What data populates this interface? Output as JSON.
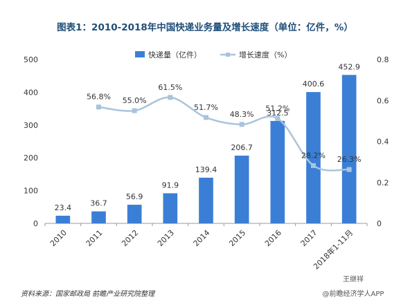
{
  "chart_data": {
    "type": "bar",
    "title": "图表1：2010-2018年中国快递业务量及增长速度（单位：亿件，%）",
    "categories": [
      "2010",
      "2011",
      "2012",
      "2013",
      "2014",
      "2015",
      "2016",
      "2017",
      "2018年1-11月"
    ],
    "series": [
      {
        "name": "快递量（亿件）",
        "type": "bar",
        "axis": "left",
        "color": "#3a7fd5",
        "values": [
          23.4,
          36.7,
          56.9,
          91.9,
          139.4,
          206.7,
          312.5,
          400.6,
          452.9
        ],
        "labels": [
          "23.4",
          "36.7",
          "56.9",
          "91.9",
          "139.4",
          "206.7",
          "312.5",
          "400.6",
          "452.9"
        ]
      },
      {
        "name": "增长速度（%）",
        "type": "line",
        "axis": "right",
        "color": "#a9c4dc",
        "values": [
          null,
          0.568,
          0.55,
          0.615,
          0.517,
          0.483,
          0.512,
          0.282,
          0.263
        ],
        "labels": [
          "",
          "56.8%",
          "55.0%",
          "61.5%",
          "51.7%",
          "48.3%",
          "51.2%",
          "28.2%",
          "26.3%"
        ]
      }
    ],
    "ylim_left": [
      0,
      500
    ],
    "yticks_left": [
      "0",
      "100",
      "200",
      "300",
      "400",
      "500"
    ],
    "ylim_right": [
      0,
      0.8
    ],
    "yticks_right": [
      "0",
      "0.2",
      "0.4",
      "0.6",
      "0.8"
    ],
    "legend_position": "top-center",
    "grid": false
  },
  "footer": {
    "source": "资料来源：国家邮政局 前瞻产业研究院整理",
    "watermark_name": "王继祥",
    "watermark_app": "@前瞻经济学人APP"
  }
}
